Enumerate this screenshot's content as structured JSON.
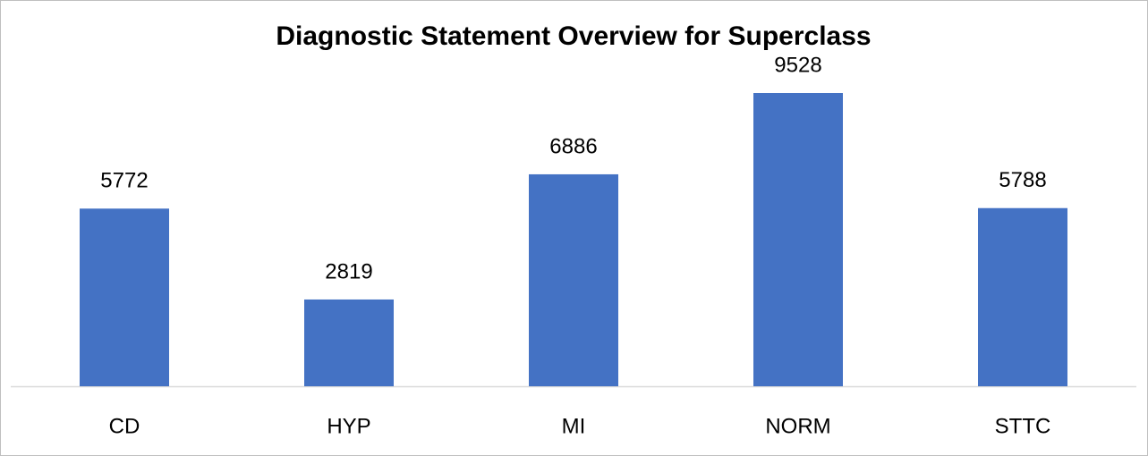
{
  "chart_data": {
    "type": "bar",
    "title": "Diagnostic Statement Overview for Superclass",
    "categories": [
      "CD",
      "HYP",
      "MI",
      "NORM",
      "STTC"
    ],
    "values": [
      5772,
      2819,
      6886,
      9528,
      5788
    ],
    "color": "#4472c4"
  }
}
